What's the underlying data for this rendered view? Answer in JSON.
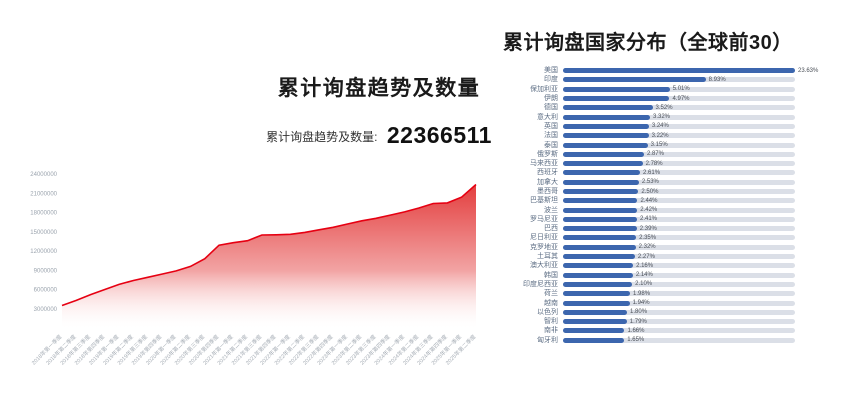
{
  "page": {
    "background": "#ffffff"
  },
  "chart_data": [
    {
      "type": "area",
      "title": "累计询盘趋势及数量",
      "subtitle_label": "累计询盘趋势及数量:",
      "subtitle_value": "22366511",
      "total": 22366511,
      "line_color": "#e60012",
      "area_top_color": "#e23434",
      "area_bottom_color": "#ffffff",
      "ylim": [
        0,
        24000000
      ],
      "y_ticks": [
        3000000,
        6000000,
        9000000,
        12000000,
        15000000,
        18000000,
        21000000,
        24000000
      ],
      "x": [
        "2018年第一季度",
        "2018年第二季度",
        "2018年第三季度",
        "2018年第四季度",
        "2019年第一季度",
        "2019年第二季度",
        "2019年第三季度",
        "2019年第四季度",
        "2020年第一季度",
        "2020年第二季度",
        "2020年第三季度",
        "2020年第四季度",
        "2021年第一季度",
        "2021年第二季度",
        "2021年第三季度",
        "2021年第四季度",
        "2022年第一季度",
        "2022年第二季度",
        "2022年第三季度",
        "2022年第四季度",
        "2023年第一季度",
        "2023年第二季度",
        "2023年第三季度",
        "2023年第四季度",
        "2024年第一季度",
        "2024年第二季度",
        "2024年第三季度",
        "2024年第四季度",
        "2025年第一季度",
        "2025年第二季度"
      ],
      "values": [
        3500000,
        4300000,
        5200000,
        6000000,
        6800000,
        7400000,
        7900000,
        8400000,
        8900000,
        9600000,
        10800000,
        12900000,
        13300000,
        13600000,
        14500000,
        14520000,
        14600000,
        14900000,
        15300000,
        15700000,
        16200000,
        16700000,
        17100000,
        17600000,
        18100000,
        18700000,
        19400000,
        19500000,
        20400000,
        22366511
      ]
    },
    {
      "type": "bar",
      "orientation": "horizontal",
      "title": "累计询盘国家分布（全球前30）",
      "bar_color": "#3c66ae",
      "track_color": "#dbdfe7",
      "categories": [
        "美国",
        "印度",
        "保加利亚",
        "伊朗",
        "德国",
        "意大利",
        "英国",
        "法国",
        "泰国",
        "俄罗斯",
        "马来西亚",
        "西班牙",
        "加拿大",
        "墨西哥",
        "巴基斯坦",
        "波兰",
        "罗马尼亚",
        "巴西",
        "尼日利亚",
        "克罗地亚",
        "土耳其",
        "澳大利亚",
        "韩国",
        "印度尼西亚",
        "荷兰",
        "越南",
        "以色列",
        "智利",
        "南非",
        "匈牙利"
      ],
      "values": [
        23.63,
        8.93,
        5.01,
        4.97,
        3.52,
        3.32,
        3.24,
        3.22,
        3.15,
        2.87,
        2.78,
        2.61,
        2.53,
        2.5,
        2.44,
        2.42,
        2.41,
        2.39,
        2.35,
        2.32,
        2.27,
        2.16,
        2.14,
        2.1,
        1.98,
        1.94,
        1.8,
        1.79,
        1.66,
        1.65
      ],
      "labels": [
        "23.63%",
        "8.93%",
        "5.01%",
        "4.97%",
        "3.52%",
        "3.32%",
        "3.24%",
        "3.22%",
        "3.15%",
        "2.87%",
        "2.78%",
        "2.61%",
        "2.53%",
        "2.50%",
        "2.44%",
        "2.42%",
        "2.41%",
        "2.39%",
        "2.35%",
        "2.32%",
        "2.27%",
        "2.16%",
        "2.14%",
        "2.10%",
        "1.98%",
        "1.94%",
        "1.80%",
        "1.79%",
        "1.66%",
        "1.65%"
      ]
    }
  ]
}
